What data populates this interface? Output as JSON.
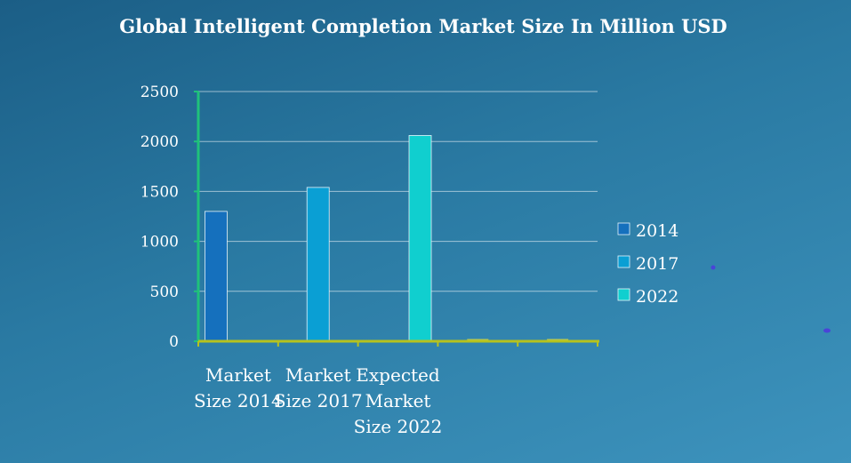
{
  "chart_data": {
    "type": "bar",
    "title": "Global Intelligent Completion Market Size In Million USD",
    "categories": [
      [
        "Market",
        "Size 2014"
      ],
      [
        "Market",
        "Size 2017"
      ],
      [
        "Expected",
        "Market",
        "Size 2022"
      ],
      [],
      []
    ],
    "series": [
      {
        "name": "2014",
        "color": "#1570bd",
        "values": [
          1300,
          0,
          0,
          0,
          0
        ]
      },
      {
        "name": "2017",
        "color": "#0a9fd4",
        "values": [
          0,
          1540,
          0,
          0,
          0
        ]
      },
      {
        "name": "2022",
        "color": "#10cfcf",
        "values": [
          0,
          0,
          2060,
          0,
          0
        ]
      }
    ],
    "ylim": [
      0,
      2500
    ],
    "yticks": [
      0,
      500,
      1000,
      1500,
      2000,
      2500
    ],
    "grid": true,
    "legend": "right",
    "axis_color": "#1fc27a",
    "baseline_color": "#b6c21e"
  }
}
